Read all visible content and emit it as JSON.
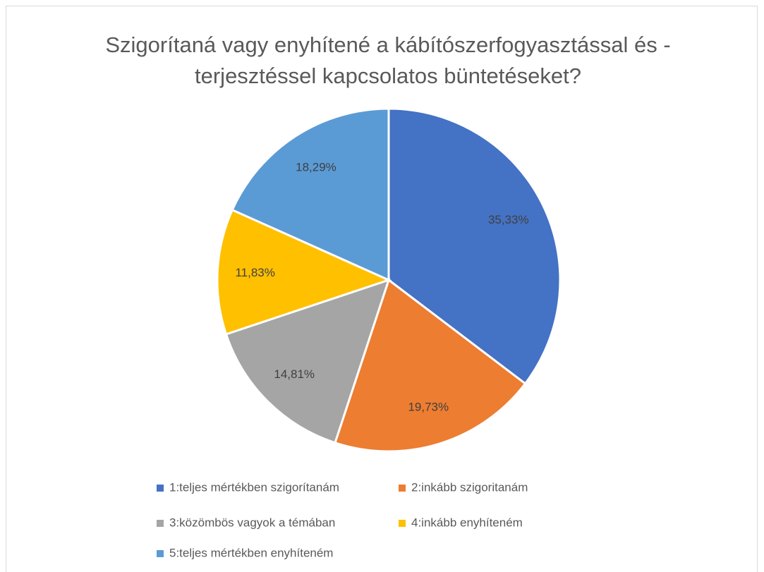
{
  "chart_data": {
    "type": "pie",
    "title": "Szigorítaná vagy enyhítené a kábítószerfogyasztással és -terjesztéssel kapcsolatos büntetéseket?",
    "categories": [
      "1:teljes mértékben szigorítanám",
      "2:inkább szigoritanám",
      "3:közömbös vagyok a témában",
      "4:inkább enyhíteném",
      "5:teljes mértékben enyhíteném"
    ],
    "values": [
      35.33,
      19.73,
      14.81,
      11.83,
      18.29
    ],
    "value_labels": [
      "35,33%",
      "19,73%",
      "14,81%",
      "11,83%",
      "18,29%"
    ],
    "colors": [
      "#4472c4",
      "#ed7d31",
      "#a5a5a5",
      "#ffc000",
      "#5b9bd5"
    ],
    "legend": "bottom"
  }
}
